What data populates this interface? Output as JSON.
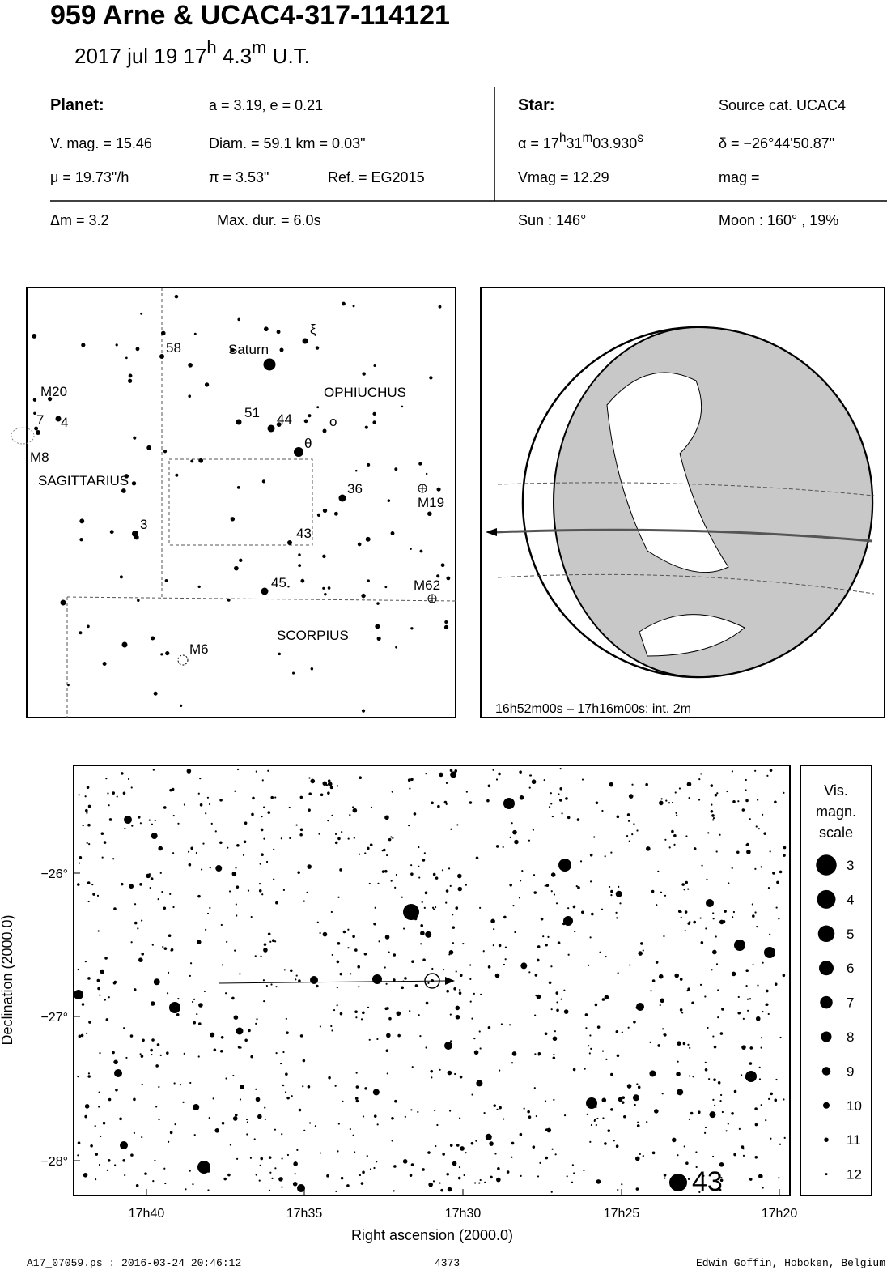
{
  "header": {
    "title": "959 Arne  &  UCAC4-317-114121",
    "date": "2017 jul 19  17",
    "hour_unit": "h",
    "minutes": " 4.3",
    "minute_unit": "m",
    "time_system": " U.T."
  },
  "info": {
    "planet_label": "Planet:",
    "orbit": "a = 3.19, e = 0.21",
    "planet_vmag": "V. mag. = 15.46",
    "diameter": "Diam. = 59.1 km = 0.03\"",
    "motion": "μ =  19.73\"/h",
    "parallax": "π =  3.53\"",
    "reference": "Ref. = EG2015",
    "star_label": "Star:",
    "source": "Source cat.  UCAC4",
    "ra_prefix": "α = 17",
    "ra_h": "h",
    "ra_min": "31",
    "ra_m": "m",
    "ra_sec": "03.930",
    "ra_s": "s",
    "declination": "δ = −26°44'50.87\"",
    "star_vmag": "Vmag = 12.29",
    "star_mag": " mag =",
    "delta_mag": "Δm = 3.2",
    "max_duration": "Max. dur. = 6.0s",
    "sun": "Sun : 146°",
    "moon": "Moon : 160° , 19%"
  },
  "finder": {
    "labels": [
      "58",
      "Saturn",
      "ξ",
      "M20",
      "OPHIUCHUS",
      "51",
      "44",
      "o",
      "7",
      "4",
      "θ",
      "M8",
      "SAGITTARIUS",
      "36",
      "M19",
      "3",
      "43",
      "45",
      "M62",
      "SCORPIUS",
      "M6"
    ]
  },
  "globe": {
    "caption": "16h52m00s – 17h16m00s; int.  2m"
  },
  "star_chart": {
    "y_label": "Declination (2000.0)",
    "y_ticks": [
      "−26°",
      "−27°",
      "−28°"
    ],
    "x_label": "Right ascension (2000.0)",
    "x_ticks": [
      "17h40",
      "17h35",
      "17h30",
      "17h25",
      "17h20"
    ],
    "star_label": "43",
    "legend_title": [
      "Vis.",
      "magn.",
      "scale"
    ],
    "legend_magnitudes": [
      3,
      4,
      5,
      6,
      7,
      8,
      9,
      10,
      11,
      12
    ]
  },
  "footer": {
    "file": "A17_07059.ps : 2016-03-24 20:46:12",
    "number": "4373",
    "author": "Edwin Goffin, Hoboken, Belgium"
  }
}
